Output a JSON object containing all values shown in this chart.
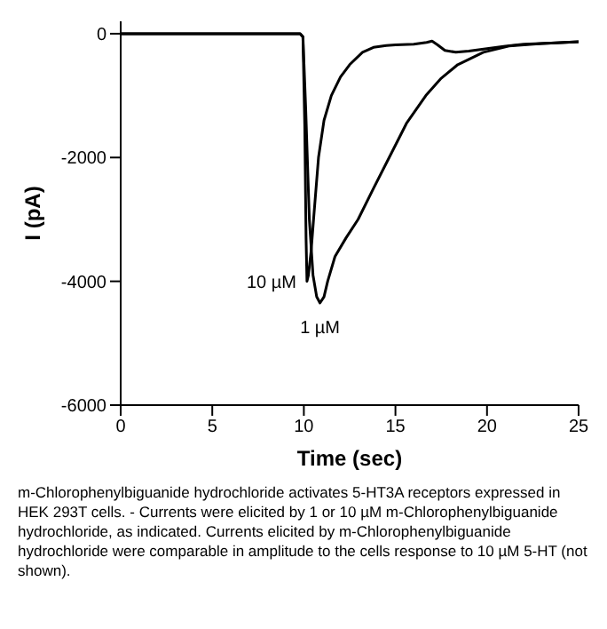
{
  "chart_data": {
    "type": "line",
    "xlabel": "Time (sec)",
    "ylabel": "I (pA)",
    "xlim": [
      0,
      25
    ],
    "xticks": [
      0,
      5,
      10,
      15,
      20,
      25
    ],
    "ylim": [
      -6000,
      200
    ],
    "yticks": [
      -6000,
      -4000,
      -2000,
      0
    ],
    "grid": false,
    "marker": "none",
    "line_style": "solid",
    "series": [
      {
        "color": "#000000",
        "x": [
          0,
          9.8,
          9.95,
          10.05,
          10.12,
          10.17,
          10.25,
          10.4,
          10.53,
          10.8,
          11.1,
          11.5,
          12,
          12.5,
          13.2,
          13.8,
          14.5,
          15,
          16,
          16.7,
          17,
          17.3,
          17.7,
          18.3,
          19,
          20,
          21,
          22,
          23.5,
          25
        ],
        "values": [
          0,
          0,
          -50,
          -1500,
          -3300,
          -4000,
          -3900,
          -3500,
          -3000,
          -2000,
          -1400,
          -1000,
          -700,
          -500,
          -300,
          -220,
          -190,
          -180,
          -170,
          -140,
          -120,
          -180,
          -270,
          -300,
          -280,
          -240,
          -200,
          -170,
          -150,
          -130
        ]
      },
      {
        "color": "#000000",
        "x": [
          0,
          9.8,
          9.95,
          10.1,
          10.3,
          10.5,
          10.7,
          10.88,
          11.1,
          11.3,
          11.7,
          12.3,
          12.96,
          13.8,
          14.66,
          15.6,
          16.66,
          17.5,
          18.4,
          19.8,
          21.2,
          23,
          25
        ],
        "values": [
          0,
          0,
          -50,
          -1200,
          -3000,
          -3900,
          -4250,
          -4350,
          -4250,
          -4000,
          -3600,
          -3300,
          -3000,
          -2500,
          -2000,
          -1450,
          -1000,
          -720,
          -500,
          -300,
          -200,
          -160,
          -130
        ]
      }
    ],
    "annotations": [
      {
        "text": "10 µM",
        "x": 10.17,
        "y": -4000
      },
      {
        "text": "1 µM",
        "x": 10.88,
        "y": -4350
      },
      "m-Chlorophenylbiguanide hydrochloride activates  5-HT3A receptors expressed in HEK 293T cells. - Currents were elicited by 1 or 10 µM m-Chlorophenylbiguanide hydrochloride, as indicated. Currents elicited by m-Chlorophenylbiguanide hydrochloride were comparable in amplitude to the cells response to 10 µM 5-HT (not shown)."
    ]
  }
}
